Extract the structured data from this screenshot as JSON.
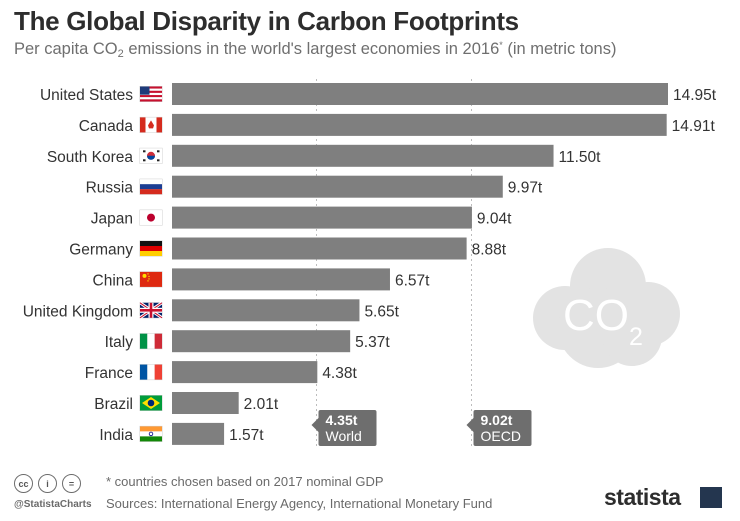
{
  "header": {
    "title": "The Global Disparity in Carbon Footprints",
    "subtitle_pre": "Per capita CO",
    "subtitle_sub": "2",
    "subtitle_mid": " emissions in the world's largest economies in 2016",
    "subtitle_sup": "*",
    "subtitle_post": " (in metric tons)"
  },
  "chart_data": {
    "type": "bar",
    "orientation": "horizontal",
    "title": "The Global Disparity in Carbon Footprints",
    "unit_suffix": "t",
    "categories": [
      "United States",
      "Canada",
      "South Korea",
      "Russia",
      "Japan",
      "Germany",
      "China",
      "United Kingdom",
      "Italy",
      "France",
      "Brazil",
      "India"
    ],
    "values": [
      14.95,
      14.91,
      11.5,
      9.97,
      9.04,
      8.88,
      6.57,
      5.65,
      5.37,
      4.38,
      2.01,
      1.57
    ],
    "labels": [
      "14.95t",
      "14.91t",
      "11.50t",
      "9.97t",
      "9.04t",
      "8.88t",
      "6.57t",
      "5.65t",
      "5.37t",
      "4.38t",
      "2.01t",
      "1.57t"
    ],
    "xlim": [
      0,
      14.95
    ],
    "bar_color": "#7f7f7f",
    "reference_lines": [
      {
        "value": 4.35,
        "value_label": "4.35t",
        "name": "World"
      },
      {
        "value": 9.02,
        "value_label": "9.02t",
        "name": "OECD"
      }
    ],
    "decoration_text": {
      "co": "CO",
      "two": "2"
    }
  },
  "footer": {
    "footnote": "* countries chosen based on 2017 nominal GDP",
    "sources": "Sources: International Energy Agency, International Monetary Fund",
    "handle": "@StatistaCharts",
    "brand": "statista",
    "license_icons": [
      "cc",
      "i",
      "="
    ]
  },
  "colors": {
    "bar": "#7f7f7f",
    "ref_box": "#6e6e6e",
    "cloud": "#e3e3e3",
    "brand_mark": "#24364f"
  }
}
